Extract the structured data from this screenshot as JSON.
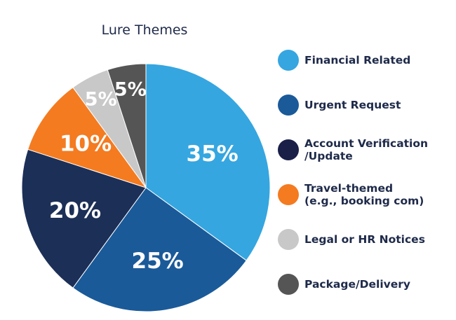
{
  "chart_data": {
    "type": "pie",
    "title": "Lure Themes",
    "legend_position": "right",
    "slices": [
      {
        "label": "Financial Related",
        "value": 35,
        "value_label": "35%",
        "color": "#35a6e0"
      },
      {
        "label": "Urgent Request",
        "value": 25,
        "value_label": "25%",
        "color": "#1a5a99"
      },
      {
        "label": "Account Verification\n/Update",
        "value": 20,
        "value_label": "20%",
        "color": "#1c2f57"
      },
      {
        "label": "Travel-themed\n(e.g., booking com)",
        "value": 10,
        "value_label": "10%",
        "color": "#f47b20"
      },
      {
        "label": "Legal or HR Notices",
        "value": 5,
        "value_label": "5%",
        "color": "#c8c8c8"
      },
      {
        "label": "Package/Delivery",
        "value": 5,
        "value_label": "5%",
        "color": "#555555"
      }
    ]
  },
  "legend": {
    "colors": {
      "account_verification_swatch": "#191f47"
    }
  }
}
